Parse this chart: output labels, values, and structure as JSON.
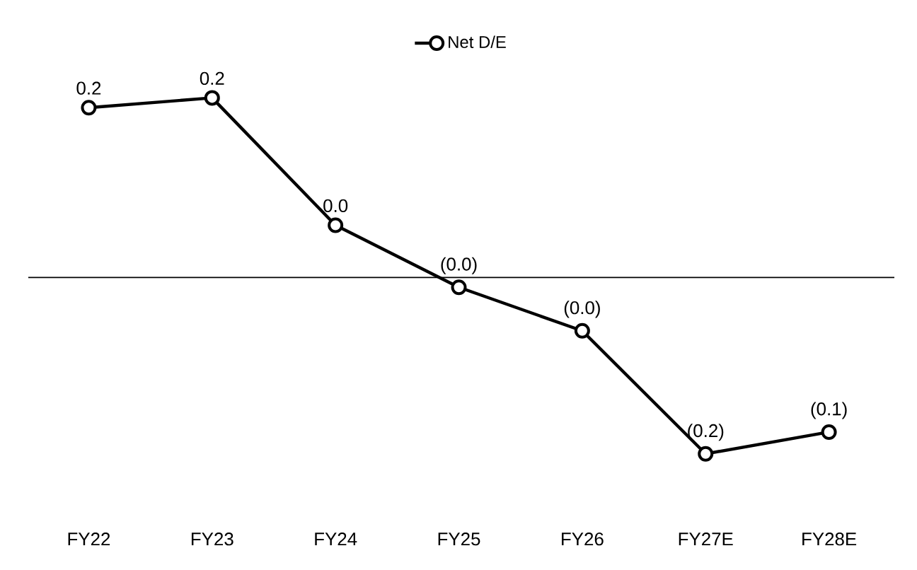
{
  "chart_data": {
    "type": "line",
    "categories": [
      "FY22",
      "FY23",
      "FY24",
      "FY25",
      "FY26",
      "FY27E",
      "FY28E"
    ],
    "series": [
      {
        "name": "Net D/E",
        "color": "#000000",
        "values": [
          0.156,
          0.165,
          0.048,
          -0.009,
          -0.049,
          -0.162,
          -0.142
        ],
        "value_labels": [
          "0.2",
          "0.2",
          "0.0",
          "(0.0)",
          "(0.0)",
          "(0.2)",
          "(0.1)"
        ]
      }
    ],
    "ref_lines": [
      {
        "axis": "y",
        "value": 0,
        "color": "#000000"
      }
    ],
    "marker": "circle",
    "legend": "top",
    "tick_labels": "x"
  }
}
